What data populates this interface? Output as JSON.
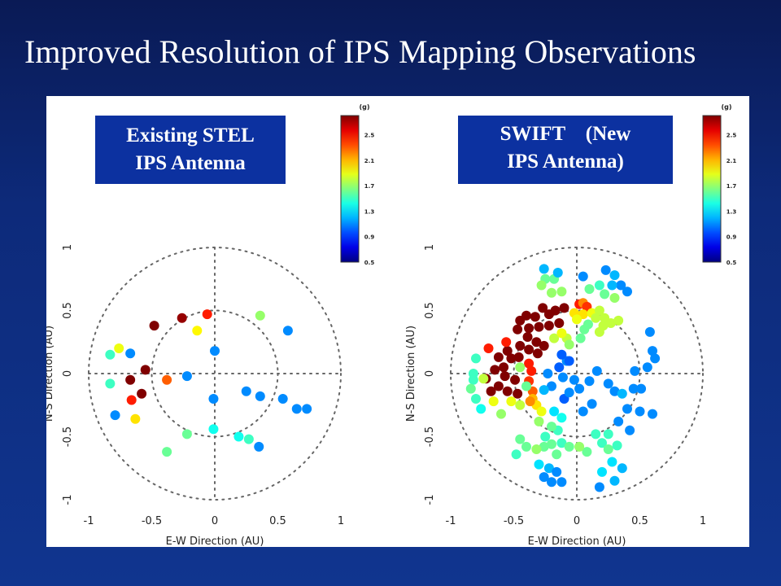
{
  "slide": {
    "title": "Improved Resolution of IPS Mapping Observations"
  },
  "colors": {
    "background": "#0d2a7a",
    "label_box": "#0c31a0"
  },
  "chart_data": [
    {
      "type": "scatter",
      "panel": "left",
      "label_lines": [
        "Existing STEL",
        "IPS Antenna"
      ],
      "xlabel": "E-W Direction (AU)",
      "ylabel": "N-S Direction (AU)",
      "xlim": [
        -1,
        1
      ],
      "ylim": [
        -1,
        1
      ],
      "x_ticks": [
        "-1",
        "-0.5",
        "0",
        "0.5",
        "1"
      ],
      "y_ticks": [
        "-1",
        "-0.5",
        "0",
        "0.5",
        "1"
      ],
      "colorbar": {
        "unit": "(g)",
        "ticks": [
          "2.5",
          "2.1",
          "1.7",
          "1.3",
          "0.9",
          "0.5"
        ],
        "range": [
          0.5,
          2.8
        ]
      },
      "grid": "dotted circles r=0.5,1 and axes",
      "points": [
        [
          -0.48,
          0.38,
          2.8
        ],
        [
          -0.26,
          0.44,
          2.75
        ],
        [
          -0.06,
          0.47,
          2.45
        ],
        [
          -0.14,
          0.34,
          1.95
        ],
        [
          0.36,
          0.46,
          1.7
        ],
        [
          0.58,
          0.34,
          1.1
        ],
        [
          -0.76,
          0.2,
          1.9
        ],
        [
          -0.83,
          0.15,
          1.5
        ],
        [
          -0.67,
          0.16,
          1.1
        ],
        [
          -0.55,
          0.03,
          2.8
        ],
        [
          -0.67,
          -0.05,
          2.8
        ],
        [
          -0.58,
          -0.16,
          2.8
        ],
        [
          -0.66,
          -0.21,
          2.45
        ],
        [
          -0.38,
          -0.05,
          2.3
        ],
        [
          -0.83,
          -0.08,
          1.5
        ],
        [
          -0.63,
          -0.36,
          2.0
        ],
        [
          -0.79,
          -0.33,
          1.1
        ],
        [
          -0.22,
          -0.48,
          1.6
        ],
        [
          -0.38,
          -0.62,
          1.6
        ],
        [
          -0.22,
          -0.02,
          1.1
        ],
        [
          0.0,
          0.18,
          1.1
        ],
        [
          -0.01,
          -0.2,
          1.1
        ],
        [
          -0.01,
          -0.44,
          1.4
        ],
        [
          0.25,
          -0.14,
          1.1
        ],
        [
          0.36,
          -0.18,
          1.1
        ],
        [
          0.54,
          -0.2,
          1.1
        ],
        [
          0.65,
          -0.28,
          1.1
        ],
        [
          0.73,
          -0.28,
          1.1
        ],
        [
          0.19,
          -0.5,
          1.4
        ],
        [
          0.27,
          -0.52,
          1.5
        ],
        [
          0.35,
          -0.58,
          1.1
        ]
      ]
    },
    {
      "type": "scatter",
      "panel": "right",
      "label_lines": [
        "SWIFT    (New",
        "IPS Antenna)"
      ],
      "xlabel": "E-W Direction (AU)",
      "ylabel": "N-S Direction (AU)",
      "xlim": [
        -1,
        1
      ],
      "ylim": [
        -1,
        1
      ],
      "x_ticks": [
        "-1",
        "-0.5",
        "0",
        "0.5",
        "1"
      ],
      "y_ticks": [
        "-1",
        "-0.5",
        "0",
        "0.5",
        "1"
      ],
      "colorbar": {
        "unit": "(g)",
        "ticks": [
          "2.5",
          "2.1",
          "1.7",
          "1.3",
          "0.9",
          "0.5"
        ],
        "range": [
          0.5,
          2.8
        ]
      },
      "grid": "dotted circles r=0.5,1 and axes",
      "points": [
        [
          -0.45,
          0.42,
          2.8
        ],
        [
          -0.4,
          0.46,
          2.8
        ],
        [
          -0.33,
          0.45,
          2.8
        ],
        [
          -0.27,
          0.52,
          2.8
        ],
        [
          -0.22,
          0.47,
          2.8
        ],
        [
          -0.17,
          0.5,
          2.8
        ],
        [
          -0.1,
          0.52,
          2.8
        ],
        [
          -0.14,
          0.4,
          2.8
        ],
        [
          -0.22,
          0.38,
          2.8
        ],
        [
          -0.3,
          0.37,
          2.8
        ],
        [
          -0.38,
          0.36,
          2.8
        ],
        [
          -0.47,
          0.35,
          2.8
        ],
        [
          -0.39,
          0.29,
          2.8
        ],
        [
          -0.32,
          0.25,
          2.8
        ],
        [
          -0.26,
          0.22,
          2.8
        ],
        [
          -0.31,
          0.16,
          2.8
        ],
        [
          -0.38,
          0.19,
          2.8
        ],
        [
          -0.45,
          0.22,
          2.8
        ],
        [
          -0.55,
          0.18,
          2.8
        ],
        [
          -0.62,
          0.13,
          2.8
        ],
        [
          -0.52,
          0.12,
          2.8
        ],
        [
          -0.46,
          0.13,
          2.8
        ],
        [
          -0.58,
          0.05,
          2.8
        ],
        [
          -0.65,
          0.03,
          2.8
        ],
        [
          -0.72,
          -0.04,
          2.8
        ],
        [
          -0.57,
          -0.02,
          2.8
        ],
        [
          -0.49,
          -0.05,
          2.8
        ],
        [
          -0.62,
          -0.1,
          2.8
        ],
        [
          -0.55,
          -0.14,
          2.8
        ],
        [
          -0.47,
          -0.16,
          2.8
        ],
        [
          -0.68,
          -0.14,
          2.8
        ],
        [
          -0.56,
          0.25,
          2.45
        ],
        [
          -0.7,
          0.2,
          2.45
        ],
        [
          -0.38,
          0.08,
          2.45
        ],
        [
          -0.36,
          0.02,
          2.45
        ],
        [
          -0.38,
          -0.06,
          2.4
        ],
        [
          -0.35,
          -0.14,
          2.3
        ],
        [
          -0.35,
          -0.2,
          2.1
        ],
        [
          -0.32,
          -0.25,
          2.0
        ],
        [
          -0.28,
          -0.3,
          1.9
        ],
        [
          -0.37,
          -0.22,
          2.2
        ],
        [
          0.02,
          0.55,
          2.45
        ],
        [
          0.05,
          0.56,
          2.2
        ],
        [
          0.08,
          0.53,
          2.4
        ],
        [
          0.05,
          0.47,
          2.0
        ],
        [
          -0.02,
          0.48,
          2.0
        ],
        [
          0.0,
          0.43,
          1.9
        ],
        [
          0.12,
          0.48,
          1.9
        ],
        [
          0.18,
          0.5,
          1.8
        ],
        [
          0.22,
          0.44,
          1.8
        ],
        [
          0.15,
          0.44,
          1.8
        ],
        [
          0.21,
          0.38,
          1.8
        ],
        [
          0.27,
          0.4,
          1.8
        ],
        [
          0.33,
          0.42,
          1.8
        ],
        [
          0.18,
          0.33,
          1.8
        ],
        [
          -0.18,
          0.28,
          1.8
        ],
        [
          -0.08,
          0.28,
          1.8
        ],
        [
          -0.12,
          0.32,
          1.9
        ],
        [
          0.03,
          0.28,
          1.6
        ],
        [
          -0.06,
          0.23,
          1.7
        ],
        [
          0.06,
          0.35,
          1.6
        ],
        [
          0.09,
          0.39,
          1.6
        ],
        [
          -0.25,
          0.75,
          1.6
        ],
        [
          -0.18,
          0.75,
          1.6
        ],
        [
          -0.28,
          0.7,
          1.7
        ],
        [
          -0.2,
          0.64,
          1.7
        ],
        [
          -0.12,
          0.65,
          1.7
        ],
        [
          0.1,
          0.67,
          1.6
        ],
        [
          0.18,
          0.7,
          1.5
        ],
        [
          0.22,
          0.63,
          1.6
        ],
        [
          0.3,
          0.6,
          1.7
        ],
        [
          -0.26,
          0.83,
          1.2
        ],
        [
          -0.15,
          0.8,
          1.2
        ],
        [
          0.05,
          0.77,
          1.1
        ],
        [
          0.23,
          0.82,
          1.1
        ],
        [
          0.3,
          0.78,
          1.2
        ],
        [
          0.35,
          0.7,
          1.1
        ],
        [
          0.28,
          0.7,
          1.2
        ],
        [
          0.4,
          0.65,
          1.1
        ],
        [
          0.58,
          0.33,
          1.1
        ],
        [
          0.6,
          0.18,
          1.1
        ],
        [
          -0.08,
          0.1,
          1.1
        ],
        [
          -0.14,
          0.05,
          1.0
        ],
        [
          -0.23,
          0.0,
          1.1
        ],
        [
          -0.2,
          -0.1,
          1.1
        ],
        [
          -0.11,
          -0.03,
          1.1
        ],
        [
          -0.1,
          -0.2,
          1.0
        ],
        [
          -0.06,
          -0.15,
          1.1
        ],
        [
          -0.26,
          -0.13,
          1.2
        ],
        [
          -0.18,
          -0.3,
          1.3
        ],
        [
          -0.12,
          -0.35,
          1.4
        ],
        [
          -0.15,
          -0.45,
          1.5
        ],
        [
          -0.2,
          -0.42,
          1.6
        ],
        [
          -0.12,
          -0.55,
          1.5
        ],
        [
          -0.2,
          -0.56,
          1.6
        ],
        [
          -0.26,
          -0.58,
          1.6
        ],
        [
          -0.32,
          -0.6,
          1.7
        ],
        [
          -0.4,
          -0.58,
          1.6
        ],
        [
          -0.45,
          -0.52,
          1.6
        ],
        [
          -0.48,
          -0.64,
          1.5
        ],
        [
          -0.16,
          -0.64,
          1.6
        ],
        [
          -0.06,
          -0.58,
          1.6
        ],
        [
          -0.3,
          -0.72,
          1.3
        ],
        [
          -0.22,
          -0.75,
          1.2
        ],
        [
          -0.26,
          -0.82,
          1.1
        ],
        [
          -0.16,
          -0.78,
          1.1
        ],
        [
          -0.2,
          -0.86,
          1.1
        ],
        [
          -0.12,
          -0.86,
          1.1
        ],
        [
          0.08,
          -0.62,
          1.6
        ],
        [
          0.02,
          -0.58,
          1.7
        ],
        [
          0.15,
          -0.48,
          1.5
        ],
        [
          0.2,
          -0.55,
          1.5
        ],
        [
          0.25,
          -0.6,
          1.6
        ],
        [
          0.32,
          -0.57,
          1.5
        ],
        [
          0.25,
          -0.48,
          1.5
        ],
        [
          0.28,
          -0.7,
          1.3
        ],
        [
          0.36,
          -0.75,
          1.2
        ],
        [
          0.2,
          -0.78,
          1.3
        ],
        [
          0.18,
          -0.9,
          1.1
        ],
        [
          0.3,
          -0.85,
          1.2
        ],
        [
          0.02,
          -0.12,
          1.1
        ],
        [
          0.1,
          -0.06,
          1.1
        ],
        [
          0.16,
          0.02,
          1.1
        ],
        [
          0.25,
          -0.08,
          1.1
        ],
        [
          0.3,
          -0.14,
          1.1
        ],
        [
          0.36,
          -0.16,
          1.2
        ],
        [
          0.45,
          -0.12,
          1.1
        ],
        [
          0.51,
          -0.12,
          1.1
        ],
        [
          0.46,
          0.02,
          1.1
        ],
        [
          0.56,
          0.05,
          1.1
        ],
        [
          0.62,
          0.12,
          1.1
        ],
        [
          0.4,
          -0.28,
          1.1
        ],
        [
          0.5,
          -0.3,
          1.1
        ],
        [
          0.6,
          -0.32,
          1.1
        ],
        [
          0.33,
          -0.38,
          1.1
        ],
        [
          0.42,
          -0.45,
          1.1
        ],
        [
          0.05,
          -0.3,
          1.1
        ],
        [
          0.12,
          -0.24,
          1.1
        ],
        [
          -0.02,
          -0.05,
          1.1
        ],
        [
          -0.12,
          0.15,
          1.0
        ],
        [
          -0.06,
          0.1,
          1.0
        ],
        [
          -0.8,
          0.12,
          1.5
        ],
        [
          -0.82,
          0.0,
          1.5
        ],
        [
          -0.82,
          -0.05,
          1.5
        ],
        [
          -0.84,
          -0.12,
          1.6
        ],
        [
          -0.8,
          -0.2,
          1.5
        ],
        [
          -0.76,
          -0.28,
          1.4
        ],
        [
          -0.74,
          -0.04,
          1.8
        ],
        [
          -0.66,
          -0.22,
          1.9
        ],
        [
          -0.6,
          -0.32,
          1.7
        ],
        [
          -0.52,
          -0.22,
          1.9
        ],
        [
          -0.45,
          -0.25,
          1.8
        ],
        [
          -0.4,
          -0.1,
          1.6
        ],
        [
          -0.45,
          0.05,
          1.7
        ],
        [
          -0.3,
          -0.38,
          1.7
        ],
        [
          -0.25,
          -0.5,
          1.5
        ]
      ]
    }
  ]
}
